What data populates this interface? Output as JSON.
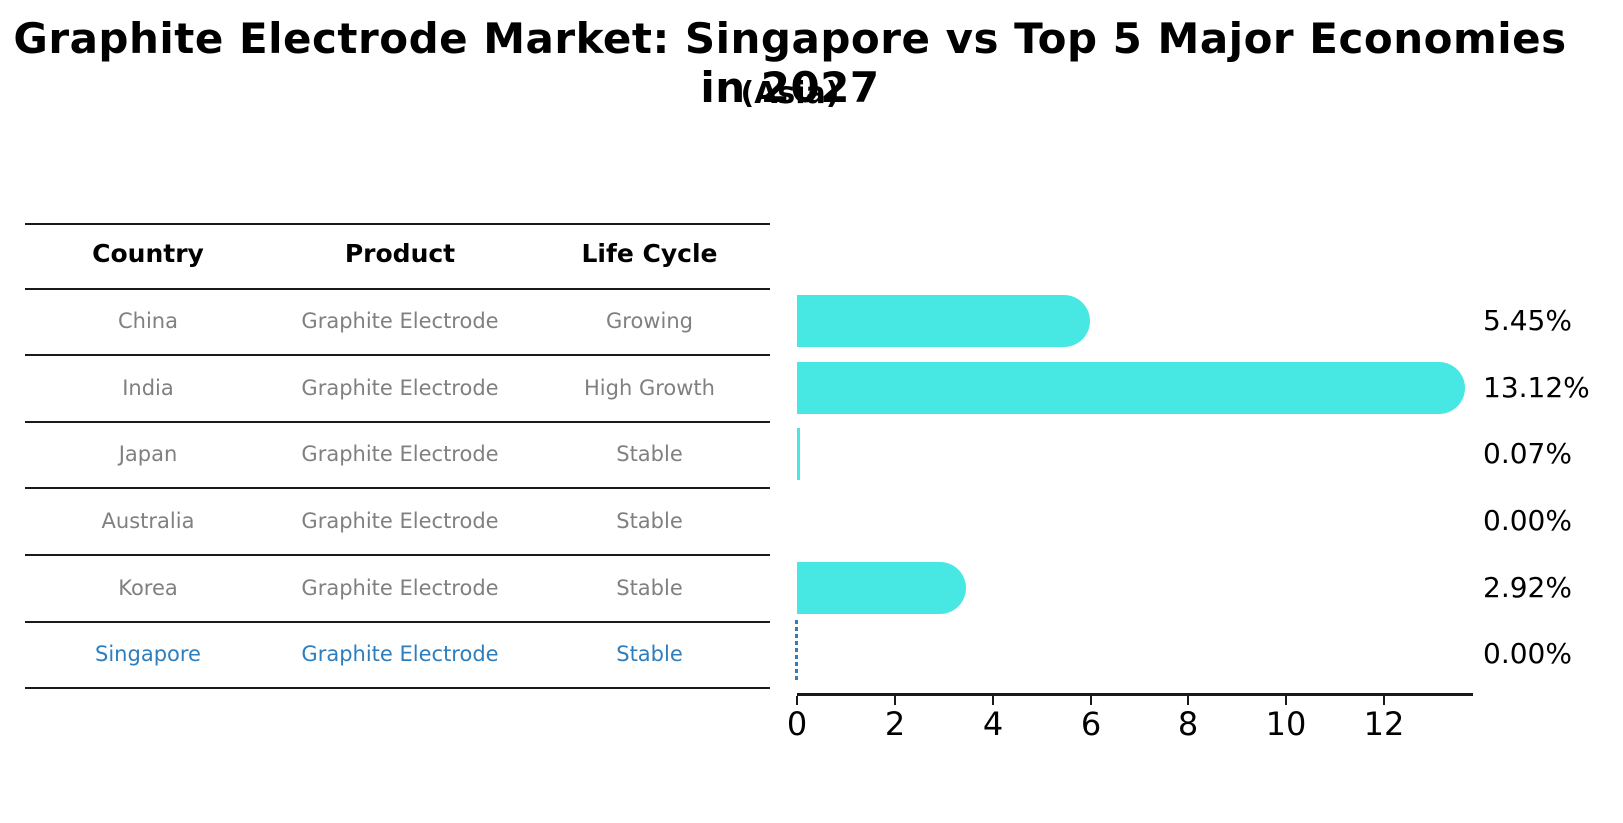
{
  "title": "Graphite Electrode Market: Singapore vs Top 5 Major Economies in 2027",
  "subtitle": "(Asia)",
  "table": {
    "headers": [
      "Country",
      "Product",
      "Life Cycle"
    ],
    "rows": [
      {
        "country": "China",
        "product": "Graphite Electrode",
        "life_cycle": "Growing",
        "highlighted": false
      },
      {
        "country": "India",
        "product": "Graphite Electrode",
        "life_cycle": "High Growth",
        "highlighted": false
      },
      {
        "country": "Japan",
        "product": "Graphite Electrode",
        "life_cycle": "Stable",
        "highlighted": false
      },
      {
        "country": "Australia",
        "product": "Graphite Electrode",
        "life_cycle": "Stable",
        "highlighted": false
      },
      {
        "country": "Korea",
        "product": "Graphite Electrode",
        "life_cycle": "Stable",
        "highlighted": false
      },
      {
        "country": "Singapore",
        "product": "Graphite Electrode",
        "life_cycle": "Stable",
        "highlighted": true
      }
    ]
  },
  "chart_data": {
    "type": "bar",
    "orientation": "horizontal",
    "categories": [
      "China",
      "India",
      "Japan",
      "Australia",
      "Korea",
      "Singapore"
    ],
    "values": [
      5.45,
      13.12,
      0.07,
      0.0,
      2.92,
      0.0
    ],
    "value_labels": [
      "5.45%",
      "13.12%",
      "0.07%",
      "0.00%",
      "2.92%",
      "0.00%"
    ],
    "x_ticks": [
      "0",
      "2",
      "4",
      "6",
      "8",
      "10",
      "12"
    ],
    "xlim": [
      0,
      13.8
    ],
    "grid": false,
    "legend": "none",
    "bar_style": "rounded-right-cap",
    "highlight_index": 5,
    "highlight_marker": "dashed-line-at-zero"
  },
  "colors": {
    "bar": "#47e8e3",
    "highlight": "#2e7ebd",
    "text": "#000000",
    "muted": "#808080",
    "line": "#1a1a1a"
  }
}
